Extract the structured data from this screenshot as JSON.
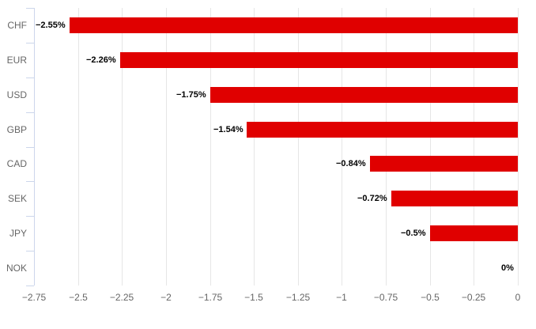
{
  "chart_data": {
    "type": "bar",
    "orientation": "horizontal",
    "title": "",
    "xlabel": "",
    "ylabel": "",
    "categories": [
      "CHF",
      "EUR",
      "USD",
      "GBP",
      "CAD",
      "SEK",
      "JPY",
      "NOK"
    ],
    "values": [
      -2.55,
      -2.26,
      -1.75,
      -1.54,
      -0.84,
      -0.72,
      -0.5,
      0
    ],
    "data_labels": [
      "−2.55%",
      "−2.26%",
      "−1.75%",
      "−1.54%",
      "−0.84%",
      "−0.72%",
      "−0.5%",
      "0%"
    ],
    "x_ticks": [
      -2.75,
      -2.5,
      -2.25,
      -2,
      -1.75,
      -1.5,
      -1.25,
      -1,
      -0.75,
      -0.5,
      -0.25,
      0
    ],
    "x_tick_labels": [
      "−2.75",
      "−2.5",
      "−2.25",
      "−2",
      "−1.75",
      "−1.5",
      "−1.25",
      "−1",
      "−0.75",
      "−0.5",
      "−0.25",
      "0"
    ],
    "xlim": [
      -2.75,
      0
    ],
    "grid": true,
    "legend": false,
    "bar_color": "#e00000",
    "grid_color": "#e6e6e6",
    "axis_line_color": "#ccd6eb",
    "axis_label_color": "#666666",
    "data_label_color": "#000000"
  }
}
